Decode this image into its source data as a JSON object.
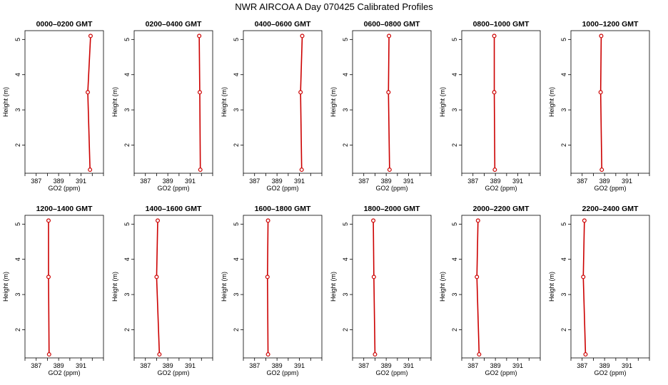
{
  "chart_data": {
    "type": "line",
    "title": "NWR AIRCOA A  Day 070425  Calibrated Profiles",
    "xlabel": "GO2 (ppm)",
    "ylabel": "Height (m)",
    "xlim": [
      386,
      393
    ],
    "ylim": [
      1.2,
      5.25
    ],
    "xticks": [
      387,
      389,
      391
    ],
    "yticks": [
      2,
      3,
      4,
      5
    ],
    "point_color": "#cc0000",
    "line_color": "#cc0000",
    "panels": [
      {
        "title": "0000–0200 GMT",
        "heights": [
          1.3,
          3.5,
          5.1
        ],
        "values": [
          391.8,
          391.6,
          391.85
        ]
      },
      {
        "title": "0200–0400 GMT",
        "heights": [
          1.3,
          3.5,
          5.1
        ],
        "values": [
          391.9,
          391.85,
          391.8
        ]
      },
      {
        "title": "0400–0600 GMT",
        "heights": [
          1.3,
          3.5,
          5.1
        ],
        "values": [
          391.2,
          391.1,
          391.25
        ]
      },
      {
        "title": "0600–0800 GMT",
        "heights": [
          1.3,
          3.5,
          5.1
        ],
        "values": [
          389.3,
          389.2,
          389.25
        ]
      },
      {
        "title": "0800–1000 GMT",
        "heights": [
          1.3,
          3.5,
          5.1
        ],
        "values": [
          388.95,
          388.9,
          388.9
        ]
      },
      {
        "title": "1000–1200 GMT",
        "heights": [
          1.3,
          3.5,
          5.1
        ],
        "values": [
          388.75,
          388.65,
          388.7
        ]
      },
      {
        "title": "1200–1400 GMT",
        "heights": [
          1.3,
          3.5,
          5.1
        ],
        "values": [
          388.15,
          388.1,
          388.1
        ]
      },
      {
        "title": "1400–1600 GMT",
        "heights": [
          1.3,
          3.5,
          5.1
        ],
        "values": [
          388.25,
          388.0,
          388.1
        ]
      },
      {
        "title": "1600–1800 GMT",
        "heights": [
          1.3,
          3.5,
          5.1
        ],
        "values": [
          388.2,
          388.15,
          388.2
        ]
      },
      {
        "title": "1800–2000 GMT",
        "heights": [
          1.3,
          3.5,
          5.1
        ],
        "values": [
          388.0,
          387.9,
          387.85
        ]
      },
      {
        "title": "2000–2200 GMT",
        "heights": [
          1.3,
          3.5,
          5.1
        ],
        "values": [
          387.55,
          387.35,
          387.45
        ]
      },
      {
        "title": "2200–2400 GMT",
        "heights": [
          1.3,
          3.5,
          5.1
        ],
        "values": [
          387.3,
          387.1,
          387.2
        ]
      }
    ]
  }
}
